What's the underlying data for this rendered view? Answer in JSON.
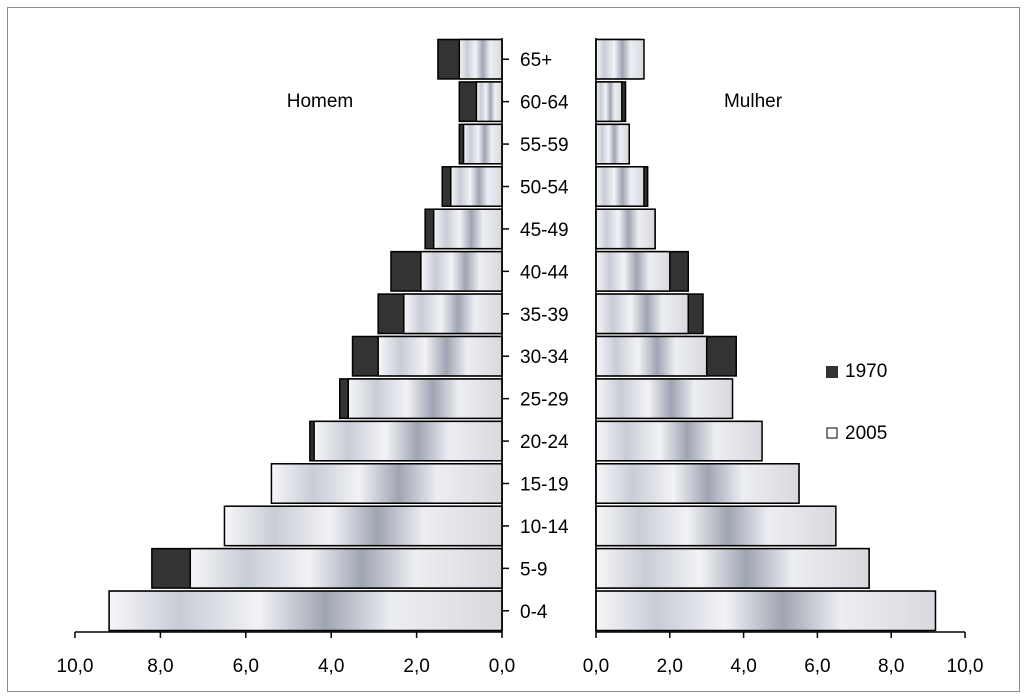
{
  "chart_data": {
    "type": "bar",
    "subtype": "population-pyramid",
    "title": "",
    "categories": [
      "0-4",
      "5-9",
      "10-14",
      "15-19",
      "20-24",
      "25-29",
      "30-34",
      "35-39",
      "40-44",
      "45-49",
      "50-54",
      "55-59",
      "60-64",
      "65+"
    ],
    "left_side": {
      "label": "Homem",
      "series": [
        {
          "name": "1970",
          "values": [
            9.2,
            8.2,
            6.4,
            4.8,
            4.5,
            3.8,
            3.5,
            2.9,
            2.6,
            1.8,
            1.4,
            1.0,
            1.0,
            1.5
          ]
        },
        {
          "name": "2005",
          "values": [
            9.2,
            7.3,
            6.5,
            5.4,
            4.4,
            3.6,
            2.9,
            2.3,
            1.9,
            1.6,
            1.2,
            0.9,
            0.6,
            1.0
          ]
        }
      ]
    },
    "right_side": {
      "label": "Mulher",
      "series": [
        {
          "name": "1970",
          "values": [
            9.0,
            7.4,
            6.4,
            5.5,
            4.3,
            3.6,
            3.8,
            2.9,
            2.5,
            1.6,
            1.4,
            0.9,
            0.8,
            1.2
          ]
        },
        {
          "name": "2005",
          "values": [
            9.2,
            7.4,
            6.5,
            5.5,
            4.5,
            3.7,
            3.0,
            2.5,
            2.0,
            1.6,
            1.3,
            0.9,
            0.7,
            1.3
          ]
        }
      ]
    },
    "x_ticks": [
      "10,0",
      "8,0",
      "6,0",
      "4,0",
      "2,0",
      "0,0"
    ],
    "x_range": [
      0,
      10
    ],
    "legend": {
      "position": "right",
      "entries": [
        {
          "label": "1970",
          "color": "#333333"
        },
        {
          "label": "2005",
          "color": "#ffffff"
        }
      ]
    },
    "grid": false
  }
}
